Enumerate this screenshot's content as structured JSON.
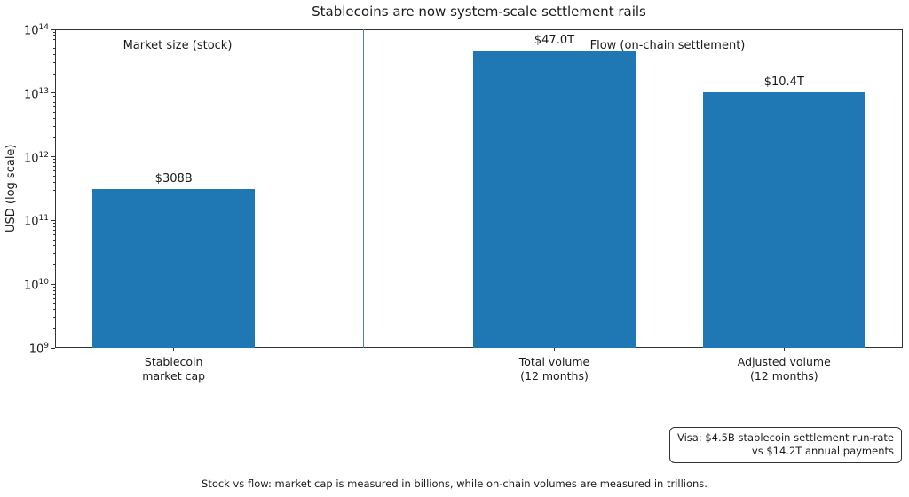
{
  "figure": {
    "title": "Stablecoins are now system-scale settlement rails",
    "ylabel": "USD (log scale)",
    "annotation_left": "Market size (stock)",
    "annotation_right": "Flow (on-chain settlement)",
    "visa_note": "Visa: $4.5B stablecoin settlement run-rate\nvs $14.2T annual payments",
    "caption": "Stock vs flow: market cap is measured in billions, while on-chain volumes are measured in trillions."
  },
  "chart_data": {
    "type": "bar",
    "title": "Stablecoins are now system-scale settlement rails",
    "ylabel": "USD (log scale)",
    "xlabel": "",
    "yscale": "log",
    "ylim": [
      1000000000.0,
      100000000000000.0
    ],
    "ytick_exponents": [
      9,
      10,
      11,
      12,
      13,
      14
    ],
    "categories": [
      "Stablecoin\nmarket cap",
      "Total volume\n(12 months)",
      "Adjusted volume\n(12 months)"
    ],
    "values": [
      308000000000.0,
      47000000000000.0,
      10400000000000.0
    ],
    "value_labels": [
      "$308B",
      "$47.0T",
      "$10.4T"
    ],
    "annotations": [
      "Market size (stock)",
      "Flow (on-chain settlement)"
    ],
    "visa_annotation": "Visa: $4.5B stablecoin settlement run-rate\nvs $14.2T annual payments",
    "footnote": "Stock vs flow: market cap is measured in billions, while on-chain volumes are measured in trillions.",
    "bar_color": "#1f77b4",
    "divider_color": "#4682b4",
    "layout": {
      "grid": false,
      "legend": "none",
      "bar_center_fracs": [
        0.14,
        0.589,
        0.86
      ],
      "bar_width_frac": 0.191,
      "divider_frac": 0.364
    }
  }
}
